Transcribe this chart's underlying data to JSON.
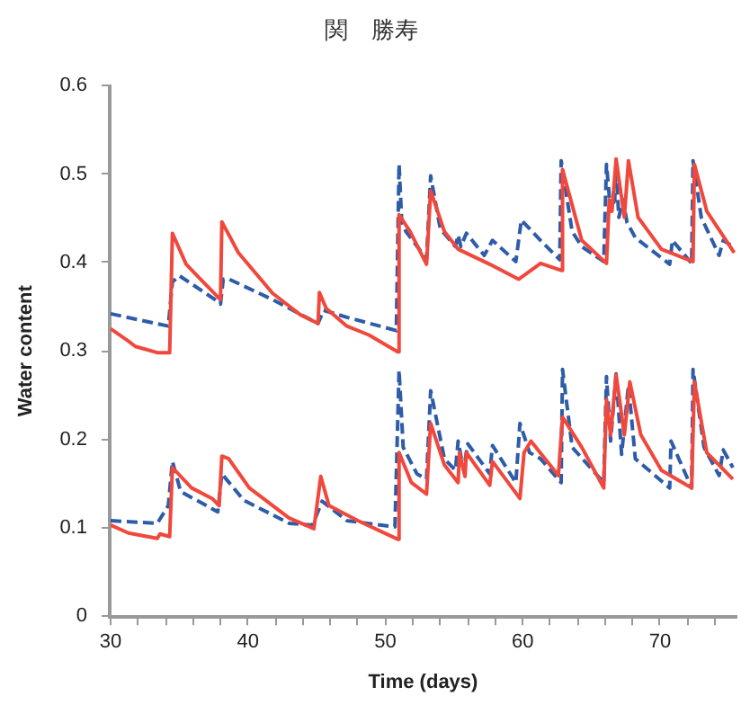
{
  "chart_data": {
    "type": "line",
    "title": "関　勝寿",
    "xlabel": "Time (days)",
    "ylabel": "Water content",
    "xlim": [
      30,
      75.5
    ],
    "ylim": [
      0,
      0.6
    ],
    "xticks": [
      30,
      {
        "value": 32,
        "label": null
      },
      {
        "value": 34,
        "label": null
      },
      {
        "value": 36,
        "label": null
      },
      {
        "value": 38,
        "label": null
      },
      40,
      {
        "value": 42,
        "label": null
      },
      {
        "value": 44,
        "label": null
      },
      {
        "value": 46,
        "label": null
      },
      {
        "value": 48,
        "label": null
      },
      50,
      {
        "value": 52,
        "label": null
      },
      {
        "value": 54,
        "label": null
      },
      {
        "value": 56,
        "label": null
      },
      {
        "value": 58,
        "label": null
      },
      60,
      {
        "value": 62,
        "label": null
      },
      {
        "value": 64,
        "label": null
      },
      {
        "value": 66,
        "label": null
      },
      {
        "value": 68,
        "label": null
      },
      70,
      {
        "value": 72,
        "label": null
      },
      {
        "value": 74,
        "label": null
      }
    ],
    "yticks": [
      0,
      0.1,
      0.2,
      0.3,
      0.4,
      0.5,
      0.6
    ],
    "grid": false,
    "legend": false,
    "marker": "none",
    "series": [
      {
        "color": "#f0483c",
        "line_style": "solid",
        "x": [
          30.0,
          31.3,
          31.8,
          33.4,
          34.3,
          34.5,
          35.5,
          36.3,
          37.8,
          38.0,
          38.1,
          39.3,
          41.8,
          43.8,
          45.1,
          45.2,
          45.7,
          47.2,
          48.8,
          50.9,
          51.0,
          51.8,
          53.0,
          53.3,
          54.3,
          55.3,
          57.6,
          59.7,
          61.3,
          62.8,
          62.9,
          64.3,
          66.1,
          66.3,
          66.5,
          66.8,
          67.4,
          67.7,
          68.4,
          70.1,
          72.4,
          72.5,
          73.4,
          75.1,
          75.4
        ],
        "values": [
          0.325,
          0.311,
          0.305,
          0.298,
          0.298,
          0.433,
          0.398,
          0.385,
          0.361,
          0.358,
          0.446,
          0.411,
          0.365,
          0.341,
          0.331,
          0.366,
          0.348,
          0.328,
          0.318,
          0.299,
          0.454,
          0.435,
          0.398,
          0.481,
          0.435,
          0.415,
          0.398,
          0.381,
          0.399,
          0.391,
          0.505,
          0.425,
          0.399,
          0.471,
          0.458,
          0.517,
          0.451,
          0.515,
          0.451,
          0.415,
          0.401,
          0.511,
          0.458,
          0.418,
          0.411
        ]
      },
      {
        "color": "#2e5ca8",
        "line_style": "dashed",
        "x": [
          30.0,
          34.2,
          34.5,
          35.0,
          37.6,
          38.0,
          38.2,
          38.5,
          41.8,
          45.1,
          45.5,
          47.2,
          50.8,
          51.0,
          51.2,
          51.5,
          53.0,
          53.3,
          54.0,
          55.1,
          55.3,
          55.5,
          55.9,
          57.2,
          57.8,
          59.5,
          59.9,
          61.3,
          62.7,
          62.8,
          63.6,
          64.3,
          65.9,
          66.1,
          66.4,
          66.7,
          66.8,
          67.0,
          67.3,
          67.6,
          68.2,
          70.7,
          70.9,
          72.3,
          72.4,
          73.0,
          74.3,
          74.6,
          75.3
        ],
        "values": [
          0.342,
          0.328,
          0.378,
          0.385,
          0.358,
          0.353,
          0.381,
          0.382,
          0.358,
          0.331,
          0.346,
          0.338,
          0.323,
          0.511,
          0.445,
          0.435,
          0.404,
          0.498,
          0.438,
          0.418,
          0.431,
          0.418,
          0.433,
          0.408,
          0.425,
          0.401,
          0.448,
          0.425,
          0.403,
          0.515,
          0.435,
          0.418,
          0.401,
          0.511,
          0.458,
          0.471,
          0.505,
          0.451,
          0.471,
          0.445,
          0.428,
          0.398,
          0.425,
          0.399,
          0.515,
          0.451,
          0.408,
          0.425,
          0.418
        ]
      },
      {
        "color": "#f0483c",
        "line_style": "solid",
        "x": [
          30.0,
          31.3,
          33.4,
          33.6,
          34.3,
          34.5,
          35.9,
          37.4,
          37.9,
          38.1,
          38.6,
          40.1,
          43.0,
          44.8,
          45.3,
          45.9,
          48.0,
          50.9,
          51.0,
          51.9,
          53.0,
          53.3,
          54.3,
          55.3,
          55.4,
          55.8,
          55.9,
          57.6,
          57.8,
          59.8,
          60.1,
          60.6,
          62.6,
          62.9,
          64.3,
          65.9,
          66.1,
          66.4,
          66.8,
          67.4,
          67.8,
          68.6,
          70.1,
          72.3,
          72.5,
          73.4,
          75.3
        ],
        "values": [
          0.103,
          0.094,
          0.088,
          0.093,
          0.09,
          0.168,
          0.145,
          0.133,
          0.125,
          0.181,
          0.178,
          0.145,
          0.111,
          0.099,
          0.158,
          0.125,
          0.108,
          0.087,
          0.185,
          0.151,
          0.138,
          0.218,
          0.171,
          0.151,
          0.185,
          0.158,
          0.185,
          0.148,
          0.175,
          0.133,
          0.185,
          0.198,
          0.159,
          0.225,
          0.191,
          0.145,
          0.245,
          0.205,
          0.273,
          0.205,
          0.265,
          0.205,
          0.165,
          0.145,
          0.265,
          0.185,
          0.155
        ]
      },
      {
        "color": "#2e5ca8",
        "line_style": "dashed",
        "x": [
          30.0,
          33.4,
          34.2,
          34.5,
          35.1,
          37.8,
          38.1,
          39.7,
          43.0,
          44.7,
          45.4,
          47.2,
          50.7,
          51.0,
          51.3,
          52.3,
          53.0,
          53.3,
          54.3,
          55.1,
          55.3,
          55.7,
          56.0,
          57.6,
          57.8,
          59.5,
          59.8,
          60.5,
          61.3,
          62.8,
          62.9,
          63.6,
          65.9,
          66.1,
          66.4,
          66.8,
          67.2,
          67.7,
          68.2,
          70.7,
          70.8,
          72.3,
          72.4,
          73.2,
          74.3,
          74.6,
          75.3
        ],
        "values": [
          0.108,
          0.105,
          0.125,
          0.175,
          0.141,
          0.118,
          0.161,
          0.131,
          0.105,
          0.103,
          0.13,
          0.108,
          0.101,
          0.278,
          0.191,
          0.161,
          0.155,
          0.255,
          0.178,
          0.165,
          0.198,
          0.165,
          0.195,
          0.161,
          0.193,
          0.151,
          0.218,
          0.185,
          0.178,
          0.151,
          0.279,
          0.191,
          0.151,
          0.271,
          0.198,
          0.274,
          0.183,
          0.261,
          0.178,
          0.145,
          0.198,
          0.145,
          0.279,
          0.191,
          0.159,
          0.188,
          0.168
        ]
      }
    ]
  }
}
